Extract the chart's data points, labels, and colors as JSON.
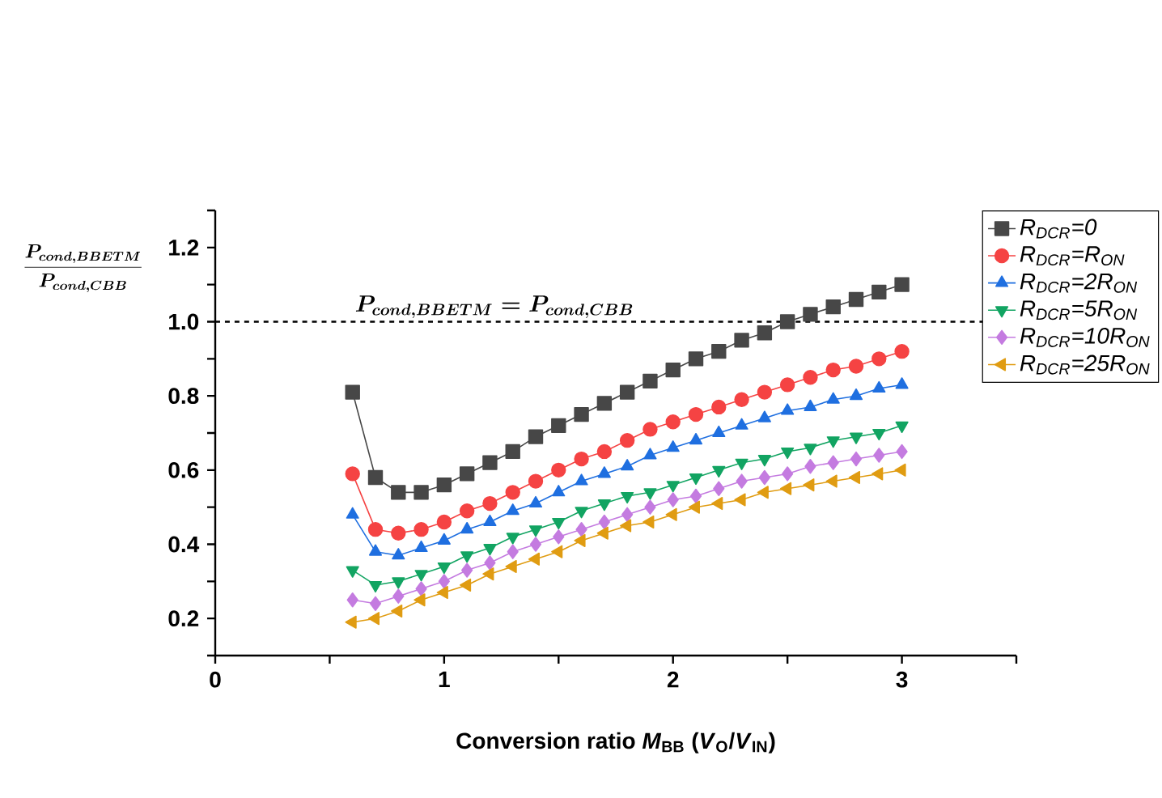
{
  "chart_data": {
    "type": "line",
    "xlabel": "Conversion ratio *M*$_{BB}$ (*V*$_{O}$/*V*$_{IN}$)",
    "ylabel": "\\frac{P_{cond,BBETM}}{P_{cond,CBB}}",
    "x": [
      0.6,
      0.7,
      0.8,
      0.9,
      1.0,
      1.1,
      1.2,
      1.3,
      1.4,
      1.5,
      1.6,
      1.7,
      1.8,
      1.9,
      2.0,
      2.1,
      2.2,
      2.3,
      2.4,
      2.5,
      2.6,
      2.7,
      2.8,
      2.9,
      3.0
    ],
    "series": [
      {
        "name": "R$_{DCR}$=0",
        "color": "#474747",
        "marker": "square",
        "values": [
          0.81,
          0.58,
          0.54,
          0.54,
          0.56,
          0.59,
          0.62,
          0.65,
          0.69,
          0.72,
          0.75,
          0.78,
          0.81,
          0.84,
          0.87,
          0.9,
          0.92,
          0.95,
          0.97,
          1.0,
          1.02,
          1.04,
          1.06,
          1.08,
          1.1
        ]
      },
      {
        "name": "R$_{DCR}$=R$_{ON}$",
        "color": "#f54343",
        "marker": "circle",
        "values": [
          0.59,
          0.44,
          0.43,
          0.44,
          0.46,
          0.49,
          0.51,
          0.54,
          0.57,
          0.6,
          0.63,
          0.65,
          0.68,
          0.71,
          0.73,
          0.75,
          0.77,
          0.79,
          0.81,
          0.83,
          0.85,
          0.87,
          0.88,
          0.9,
          0.92
        ]
      },
      {
        "name": "R$_{DCR}$=2R$_{ON}$",
        "color": "#1f6fe0",
        "marker": "triangle",
        "values": [
          0.48,
          0.38,
          0.37,
          0.39,
          0.41,
          0.44,
          0.46,
          0.49,
          0.51,
          0.54,
          0.57,
          0.59,
          0.61,
          0.64,
          0.66,
          0.68,
          0.7,
          0.72,
          0.74,
          0.76,
          0.77,
          0.79,
          0.8,
          0.82,
          0.83
        ]
      },
      {
        "name": "R$_{DCR}$=5R$_{ON}$",
        "color": "#12a462",
        "marker": "triangle-down",
        "values": [
          0.33,
          0.29,
          0.3,
          0.32,
          0.34,
          0.37,
          0.39,
          0.42,
          0.44,
          0.46,
          0.49,
          0.51,
          0.53,
          0.54,
          0.56,
          0.58,
          0.6,
          0.62,
          0.63,
          0.65,
          0.66,
          0.68,
          0.69,
          0.7,
          0.72
        ]
      },
      {
        "name": "R$_{DCR}$=10R$_{ON}$",
        "color": "#c47be0",
        "marker": "diamond",
        "values": [
          0.25,
          0.24,
          0.26,
          0.28,
          0.3,
          0.33,
          0.35,
          0.38,
          0.4,
          0.42,
          0.44,
          0.46,
          0.48,
          0.5,
          0.52,
          0.53,
          0.55,
          0.57,
          0.58,
          0.59,
          0.61,
          0.62,
          0.63,
          0.64,
          0.65
        ]
      },
      {
        "name": "R$_{DCR}$=25R$_{ON}$",
        "color": "#e09c12",
        "marker": "triangle-left",
        "values": [
          0.19,
          0.2,
          0.22,
          0.25,
          0.27,
          0.29,
          0.32,
          0.34,
          0.36,
          0.38,
          0.41,
          0.43,
          0.45,
          0.46,
          0.48,
          0.5,
          0.51,
          0.52,
          0.54,
          0.55,
          0.56,
          0.57,
          0.58,
          0.59,
          0.6
        ]
      }
    ],
    "xlim": [
      0,
      3.5
    ],
    "xticks": [
      0,
      {
        "value": 0.5,
        "label": null
      },
      1,
      {
        "value": 1.5,
        "label": null
      },
      2,
      {
        "value": 2.5,
        "label": null
      },
      3,
      {
        "value": 3.5,
        "label": null
      }
    ],
    "ylim": [
      0.1,
      1.3
    ],
    "yticks": [
      {
        "value": 0.1,
        "label": null
      },
      0.2,
      {
        "value": 0.3,
        "label": null
      },
      0.4,
      {
        "value": 0.5,
        "label": null
      },
      0.6,
      {
        "value": 0.7,
        "label": null
      },
      0.8,
      {
        "value": 0.9,
        "label": null
      },
      {
        "value": 1.0,
        "label": "1.0"
      },
      {
        "value": 1.1,
        "label": null
      },
      1.2,
      {
        "value": 1.3,
        "label": null
      }
    ],
    "ref_lines": [
      {
        "axis": "y",
        "value": 1.0,
        "label": "P_{cond,BBETM} = P_{cond,CBB}",
        "line_style": "dashed",
        "color": "#000000"
      }
    ],
    "legend": "top right",
    "grid": false,
    "line_style": "solid"
  }
}
